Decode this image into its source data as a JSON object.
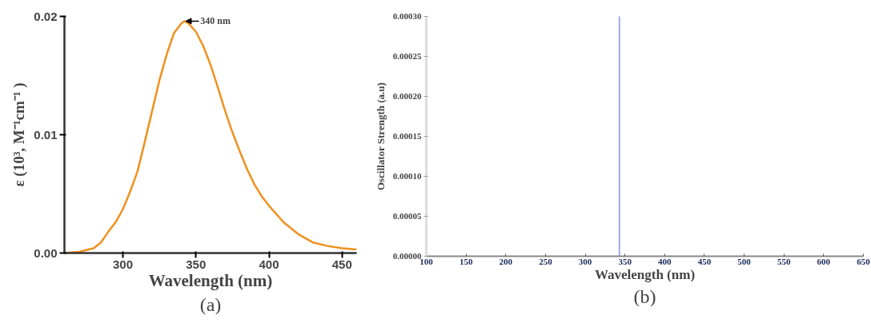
{
  "chart_data": [
    {
      "type": "line",
      "xlabel": "Wavelength (nm)",
      "ylabel": "ε (10³, M⁻¹cm⁻¹ )",
      "xlim": [
        260,
        460
      ],
      "ylim": [
        0,
        0.02
      ],
      "xticks": [
        300,
        350,
        400,
        450
      ],
      "yticks": [
        {
          "value": 0,
          "label": "0.00"
        },
        {
          "value": 0.01,
          "label": "0.01"
        },
        {
          "value": 0.02,
          "label": "0.02"
        }
      ],
      "series": [
        {
          "color": "#f0901e",
          "x": [
            260,
            270,
            280,
            285,
            290,
            295,
            300,
            305,
            310,
            315,
            320,
            325,
            330,
            335,
            340,
            342,
            345,
            350,
            355,
            360,
            365,
            370,
            375,
            380,
            385,
            390,
            395,
            400,
            410,
            420,
            430,
            440,
            450,
            460
          ],
          "values": [
            0,
            0.0001,
            0.0004,
            0.0009,
            0.0018,
            0.0026,
            0.0037,
            0.0052,
            0.0069,
            0.0094,
            0.012,
            0.0146,
            0.0168,
            0.0186,
            0.0194,
            0.0196,
            0.0194,
            0.0187,
            0.0175,
            0.0159,
            0.014,
            0.012,
            0.0102,
            0.0086,
            0.0071,
            0.0058,
            0.0048,
            0.004,
            0.0026,
            0.0016,
            0.0009,
            0.0006,
            0.0004,
            0.0003
          ]
        }
      ],
      "annotations": [
        {
          "text": "340 nm",
          "x": 342,
          "y": 0.0196
        },
        "(a)"
      ]
    },
    {
      "type": "bar",
      "xlabel": "Wavelength (nm)",
      "ylabel": "Oscillator Strength (a.u)",
      "xlim": [
        100,
        650
      ],
      "ylim": [
        0,
        0.0003
      ],
      "xticks": [
        100,
        150,
        200,
        250,
        300,
        350,
        400,
        450,
        500,
        550,
        600,
        650
      ],
      "yticks": [
        {
          "value": 0,
          "label": "0.00000"
        },
        {
          "value": 5e-05,
          "label": "0.00005"
        },
        {
          "value": 0.0001,
          "label": "0.00010"
        },
        {
          "value": 0.00015,
          "label": "0.00015"
        },
        {
          "value": 0.0002,
          "label": "0.00020"
        },
        {
          "value": 0.00025,
          "label": "0.00025"
        },
        {
          "value": 0.0003,
          "label": "0.00030"
        }
      ],
      "series": [
        {
          "color": "#8c8ce6",
          "x": [
            343
          ],
          "values": [
            0.0003
          ]
        }
      ],
      "annotations": [
        "(b)"
      ]
    }
  ]
}
